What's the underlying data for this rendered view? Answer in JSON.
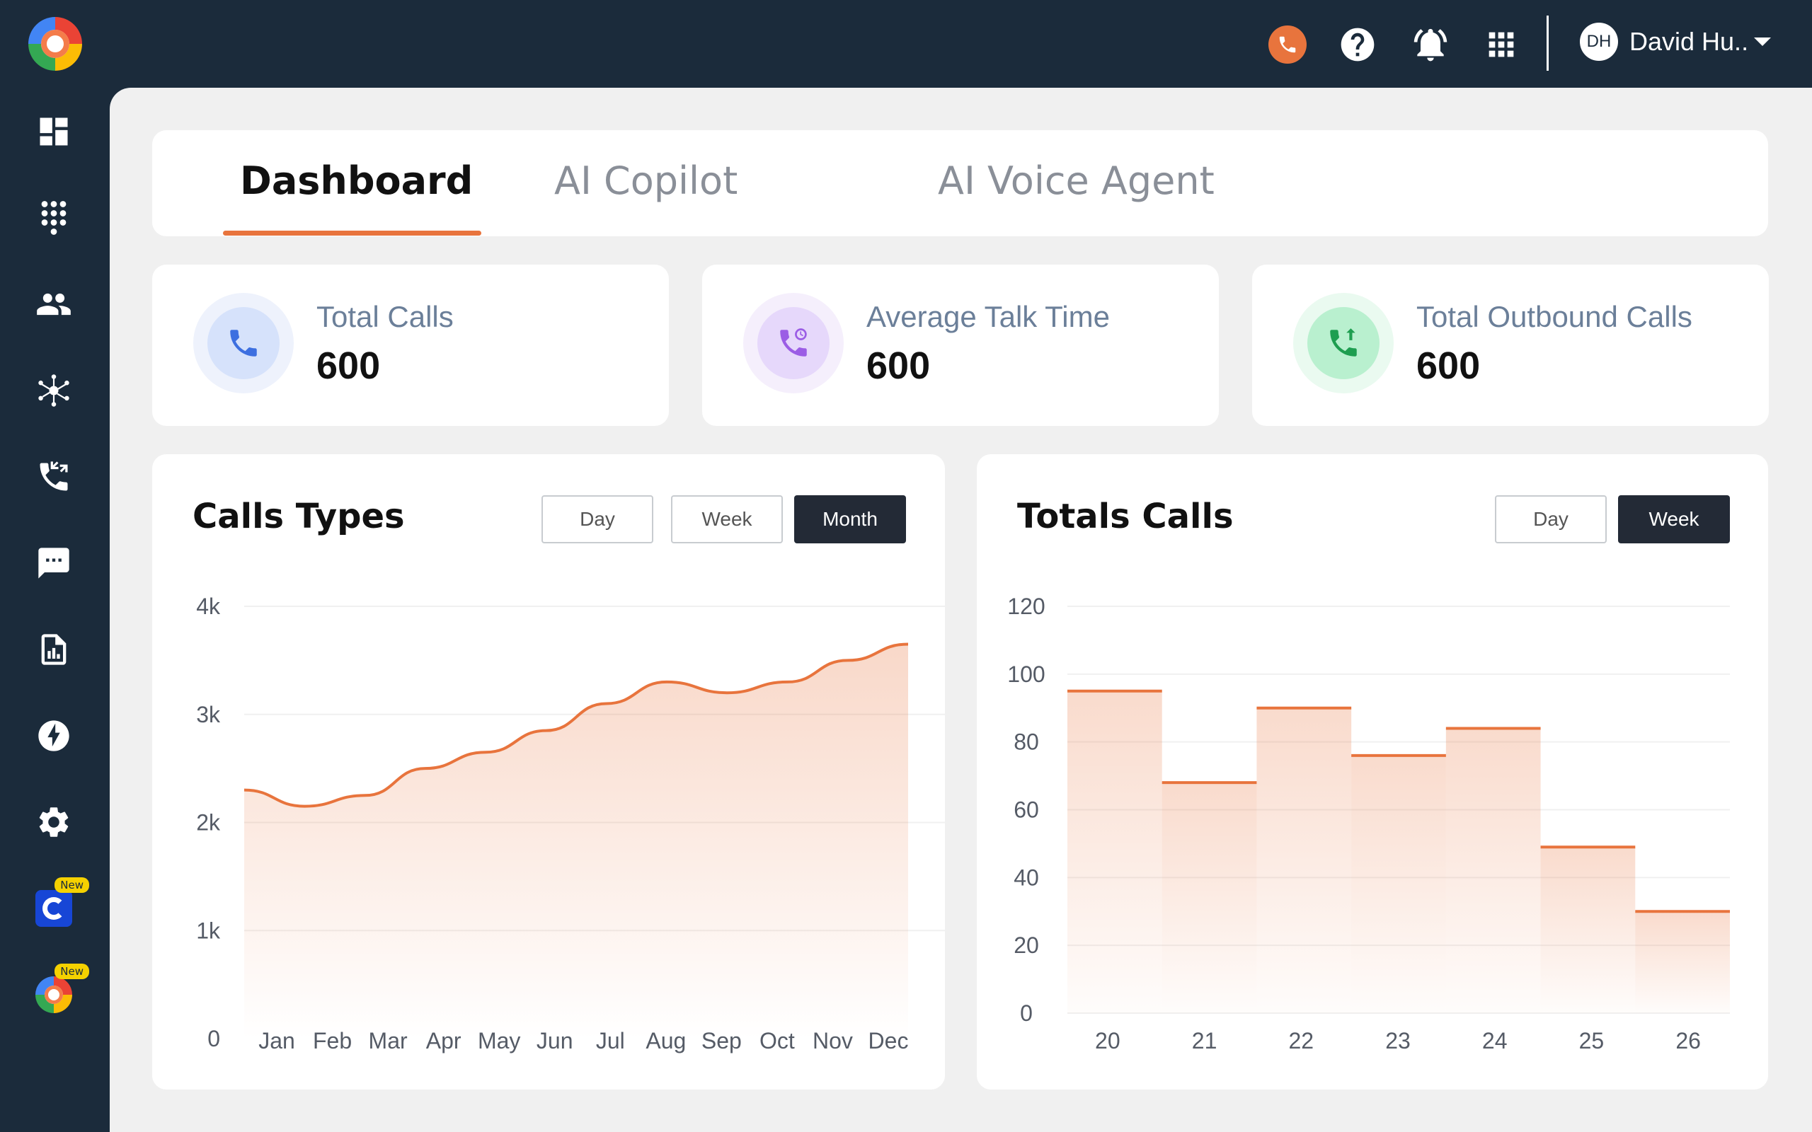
{
  "user": {
    "initials": "DH",
    "name": "David Hu.."
  },
  "sidebar": {
    "new_badge": "New",
    "icons": [
      "dashboard-icon",
      "dialpad-icon",
      "contacts-icon",
      "integrations-icon",
      "call-transfer-icon",
      "messages-icon",
      "reports-icon",
      "automation-icon",
      "settings-icon",
      "app-c-icon",
      "app-logo-icon"
    ]
  },
  "tabs": [
    {
      "label": "Dashboard",
      "active": true
    },
    {
      "label": "AI Copilot",
      "active": false
    },
    {
      "label": "AI Voice Agent",
      "active": false
    }
  ],
  "stats": [
    {
      "label": "Total Calls",
      "value": "600",
      "color": "#4a7be8"
    },
    {
      "label": "Average Talk Time",
      "value": "600",
      "color": "#9b5de5"
    },
    {
      "label": "Total Outbound Calls",
      "value": "600",
      "color": "#22a455"
    }
  ],
  "calls_types": {
    "title": "Calls Types",
    "ranges": [
      "Day",
      "Week",
      "Month"
    ],
    "active_range": "Month"
  },
  "totals_calls": {
    "title": "Totals Calls",
    "ranges": [
      "Day",
      "Week"
    ],
    "active_range": "Week"
  },
  "chart_data": [
    {
      "type": "area",
      "title": "Calls Types",
      "categories": [
        "Jan",
        "Feb",
        "Mar",
        "Apr",
        "May",
        "Jun",
        "Jul",
        "Aug",
        "Sep",
        "Oct",
        "Nov",
        "Dec"
      ],
      "values": [
        2300,
        2150,
        2250,
        2500,
        2650,
        2850,
        3100,
        3300,
        3200,
        3300,
        3500,
        3650
      ],
      "y_ticks": [
        "0",
        "1k",
        "2k",
        "3k",
        "4k"
      ],
      "ylim": [
        0,
        4000
      ],
      "color": "#e8743d"
    },
    {
      "type": "bar",
      "title": "Totals Calls",
      "categories": [
        "20",
        "21",
        "22",
        "23",
        "24",
        "25",
        "26"
      ],
      "values": [
        95,
        68,
        90,
        76,
        84,
        49,
        30
      ],
      "y_ticks": [
        "0",
        "20",
        "40",
        "60",
        "80",
        "100",
        "120"
      ],
      "ylim": [
        0,
        120
      ],
      "color": "#e8743d"
    }
  ]
}
